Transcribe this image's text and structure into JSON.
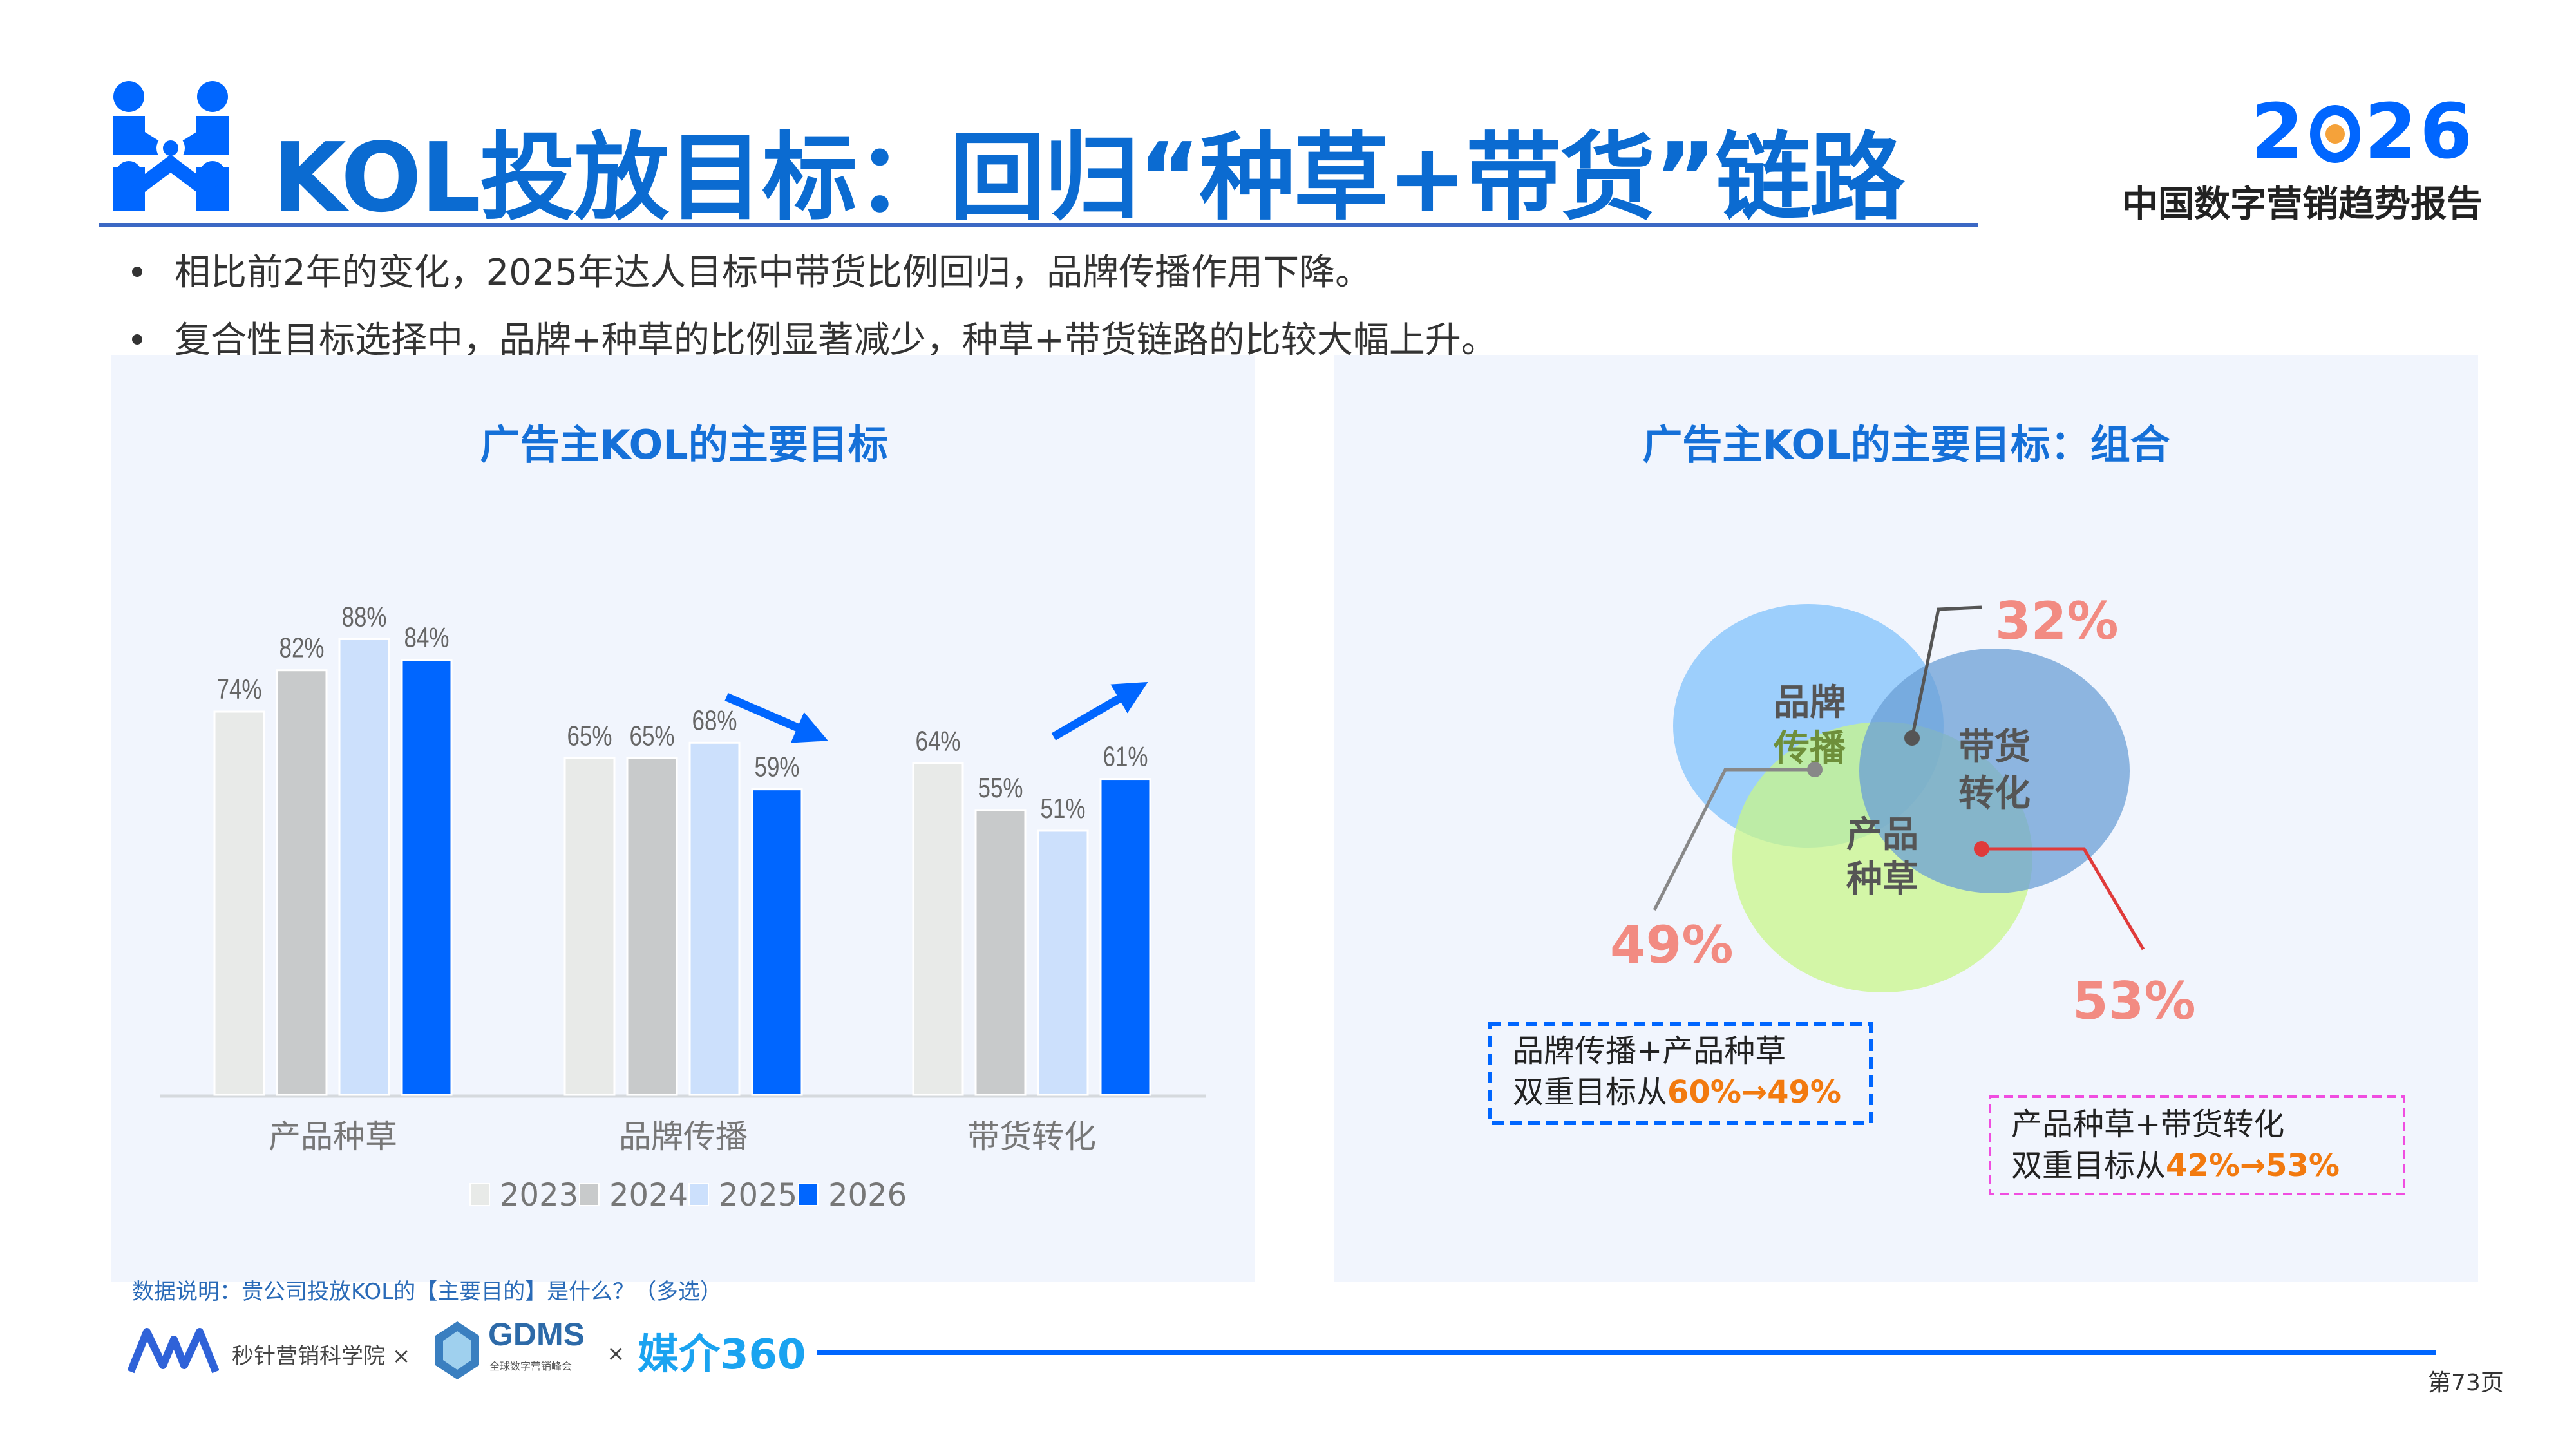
{
  "header": {
    "title": "KOL投放目标：回归“种草+带货”链路",
    "logo_year": [
      "2",
      "26"
    ],
    "report_name": "中国数字营销趋势报告",
    "logo_icon": "people-network-icon"
  },
  "bullets": [
    "相比前2年的变化，2025年达人目标中带货比例回归，品牌传播作用下降。",
    "复合性目标选择中，品牌+种草的比例显著减少，种草+带货链路的比较大幅上升。"
  ],
  "left_panel": {
    "title": "广告主KOL的主要目标"
  },
  "right_panel": {
    "title": "广告主KOL的主要目标：组合",
    "venn": {
      "sets": [
        {
          "label_line1": "品牌",
          "label_line2": "传播",
          "color": "#8ec8fb"
        },
        {
          "label_line1": "带货",
          "label_line2": "转化",
          "color": "#6b9fd6"
        },
        {
          "label_line1": "产品",
          "label_line2": "种草",
          "color": "#c8f58a"
        }
      ],
      "callouts": {
        "brand_seed": "49%",
        "brand_sales": "32%",
        "seed_sales": "53%"
      },
      "box1": {
        "line1": "品牌传播+产品种草",
        "line2_prefix": "双重目标从",
        "line2_value": "60%→49%"
      },
      "box2": {
        "line1": "产品种草+带货转化",
        "line2_prefix": "双重目标从",
        "line2_value": "42%→53%"
      }
    }
  },
  "chart_data": {
    "type": "bar",
    "title": "广告主KOL的主要目标",
    "categories": [
      "产品种草",
      "品牌传播",
      "带货转化"
    ],
    "series": [
      {
        "name": "2023",
        "values": [
          74,
          65,
          64
        ],
        "color": "#e8eae8"
      },
      {
        "name": "2024",
        "values": [
          82,
          65,
          55
        ],
        "color": "#c8cacb"
      },
      {
        "name": "2025",
        "values": [
          88,
          68,
          51
        ],
        "color": "#cce0fc"
      },
      {
        "name": "2026",
        "values": [
          84,
          59,
          61
        ],
        "color": "#0066ff"
      }
    ],
    "value_suffix": "%",
    "ylim": [
      0,
      100
    ],
    "legend": "bottom",
    "grid": false,
    "annotations": [
      {
        "category": "品牌传播",
        "arrow": "down"
      },
      {
        "category": "带货转化",
        "arrow": "up"
      }
    ]
  },
  "footer": {
    "note": "数据说明：贵公司投放KOL的【主要目的】是什么？（多选）",
    "partner1": "秒针营销科学院",
    "times": "×",
    "partner2": "GDMS",
    "partner2_sub": "全球数字营销峰会",
    "partner3": "媒介360",
    "page": "第73页"
  }
}
